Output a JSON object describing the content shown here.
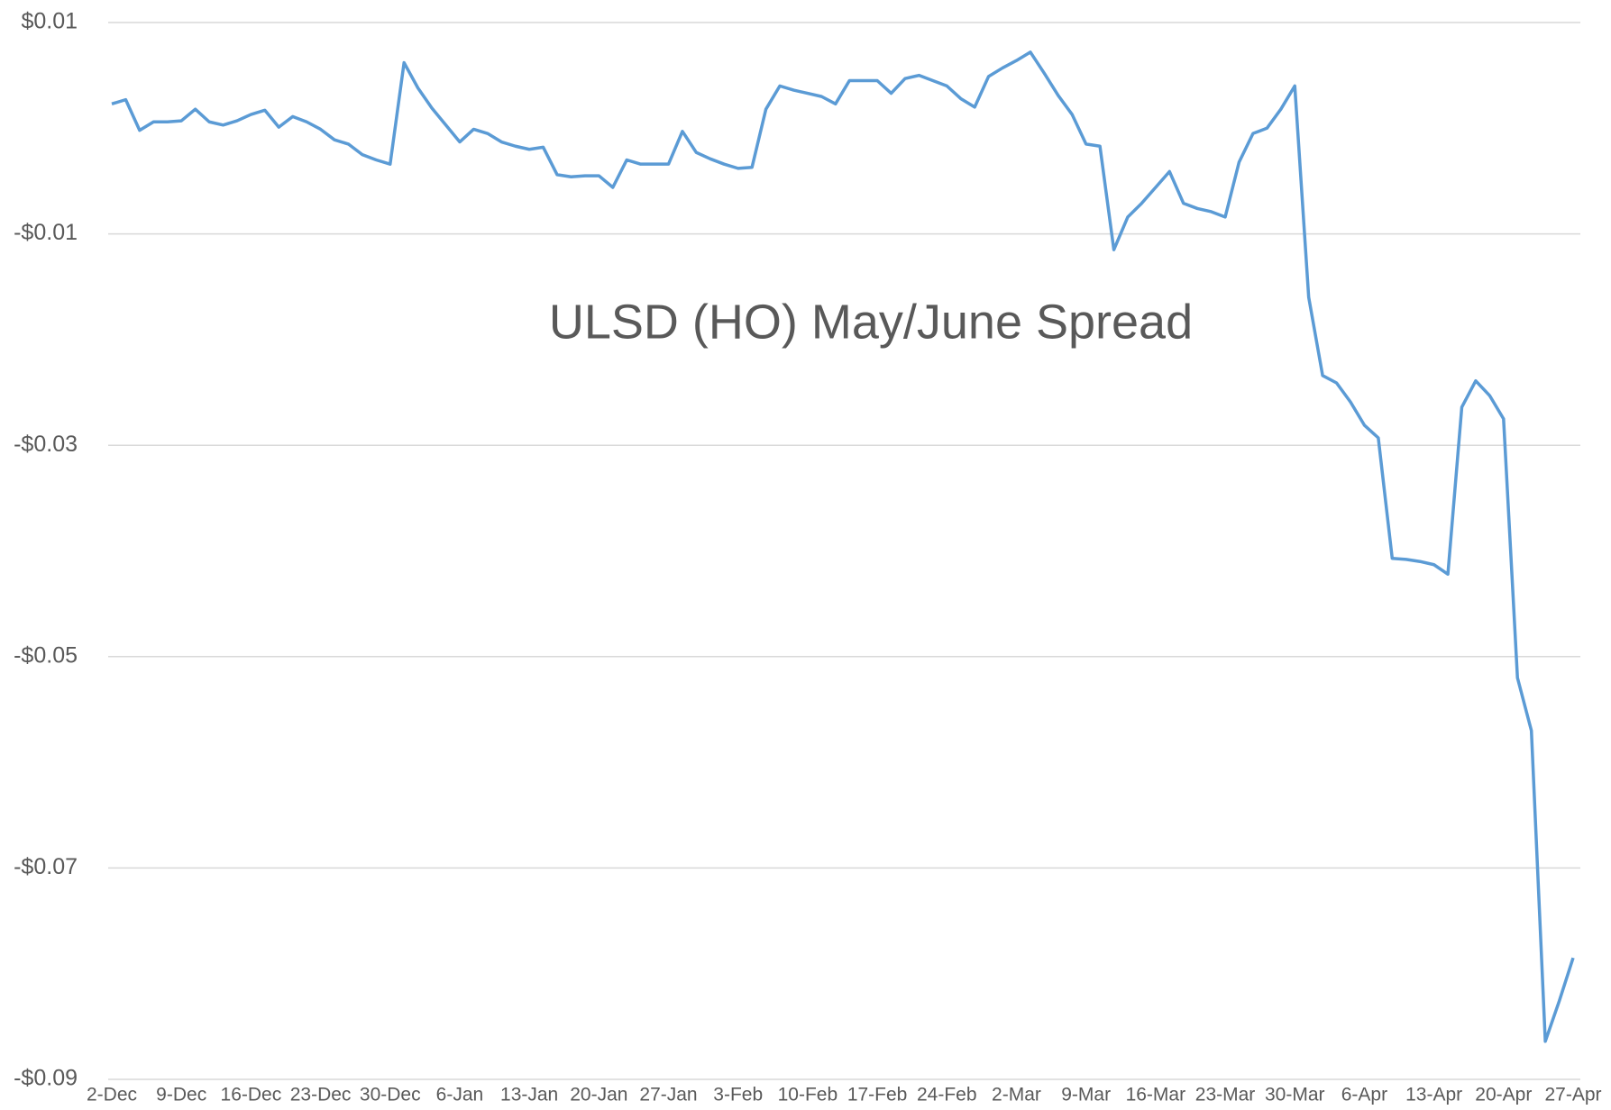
{
  "chart_data": {
    "type": "line",
    "title": "ULSD (HO) May/June Spread",
    "categories": [
      "2-Dec",
      null,
      null,
      null,
      null,
      "9-Dec",
      null,
      null,
      null,
      null,
      "16-Dec",
      null,
      null,
      null,
      null,
      "23-Dec",
      null,
      null,
      null,
      null,
      "30-Dec",
      null,
      null,
      null,
      null,
      "6-Jan",
      null,
      null,
      null,
      null,
      "13-Jan",
      null,
      null,
      null,
      null,
      "20-Jan",
      null,
      null,
      null,
      null,
      "27-Jan",
      null,
      null,
      null,
      null,
      "3-Feb",
      null,
      null,
      null,
      null,
      "10-Feb",
      null,
      null,
      null,
      null,
      "17-Feb",
      null,
      null,
      null,
      null,
      "24-Feb",
      null,
      null,
      null,
      null,
      "2-Mar",
      null,
      null,
      null,
      null,
      "9-Mar",
      null,
      null,
      null,
      null,
      "16-Mar",
      null,
      null,
      null,
      null,
      "23-Mar",
      null,
      null,
      null,
      null,
      "30-Mar",
      null,
      null,
      null,
      null,
      "6-Apr",
      null,
      null,
      null,
      null,
      "13-Apr",
      null,
      null,
      null,
      null,
      "20-Apr",
      null,
      null,
      null,
      null,
      "27-Apr"
    ],
    "values": [
      0.0023,
      0.0027,
      -0.0002,
      0.0006,
      0.0006,
      0.0007,
      0.0018,
      0.0006,
      0.0003,
      0.0007,
      0.0013,
      0.0017,
      0.0001,
      0.0011,
      0.0006,
      -0.0001,
      -0.0011,
      -0.0015,
      -0.0025,
      -0.003,
      -0.0034,
      0.0062,
      0.0038,
      0.0019,
      0.0003,
      -0.0013,
      -0.0001,
      -0.0005,
      -0.0013,
      -0.0017,
      -0.002,
      -0.0018,
      -0.0044,
      -0.0046,
      -0.0045,
      -0.0045,
      -0.0056,
      -0.003,
      -0.0034,
      -0.0034,
      -0.0034,
      -0.0003,
      -0.0023,
      -0.0029,
      -0.0034,
      -0.0038,
      -0.0037,
      0.0018,
      0.004,
      0.0036,
      0.0033,
      0.003,
      0.0023,
      0.0045,
      0.0045,
      0.0045,
      0.0033,
      0.0047,
      0.005,
      0.0045,
      0.004,
      0.0028,
      0.002,
      0.0049,
      0.0057,
      0.0064,
      0.0072,
      0.0052,
      0.0031,
      0.0013,
      -0.0015,
      -0.0017,
      -0.0115,
      -0.0084,
      -0.0071,
      -0.0056,
      -0.0041,
      -0.0071,
      -0.0076,
      -0.0079,
      -0.0084,
      -0.0032,
      -0.0005,
      0,
      0.0018,
      0.004,
      -0.016,
      -0.0234,
      -0.0241,
      -0.0259,
      -0.0281,
      -0.0293,
      -0.0407,
      -0.0408,
      -0.041,
      -0.0413,
      -0.0422,
      -0.0264,
      -0.0239,
      -0.0253,
      -0.0275,
      -0.052,
      -0.057,
      -0.0864,
      -0.0826,
      -0.0785
    ],
    "color": "#5b9bd5",
    "ylim": [
      -0.09,
      0.01
    ],
    "yticks": [
      {
        "value": 0.01,
        "label": "$0.01"
      },
      {
        "value": -0.01,
        "label": "-$0.01"
      },
      {
        "value": -0.03,
        "label": "-$0.03"
      },
      {
        "value": -0.05,
        "label": "-$0.05"
      },
      {
        "value": -0.07,
        "label": "-$0.07"
      },
      {
        "value": -0.09,
        "label": "-$0.09"
      }
    ],
    "grid": true
  }
}
